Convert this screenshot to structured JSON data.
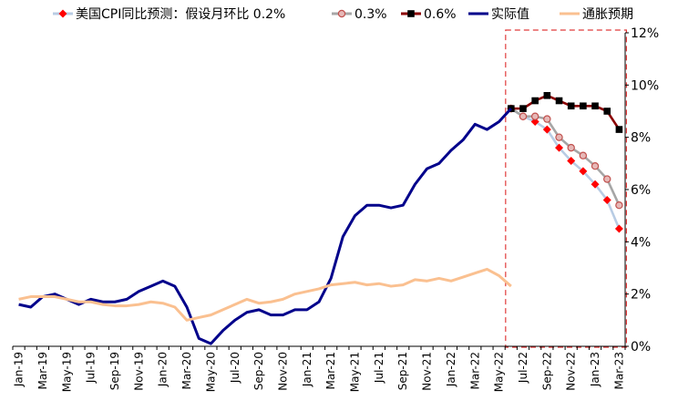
{
  "chart_data": {
    "type": "line",
    "title": "",
    "xlabel": "",
    "ylabel": "",
    "ylim": [
      0,
      12
    ],
    "yticks": [
      "0%",
      "2%",
      "4%",
      "6%",
      "8%",
      "10%",
      "12%"
    ],
    "y_axis_side": "right",
    "x_tick_labels": [
      "Jan-19",
      "Mar-19",
      "May-19",
      "Jul-19",
      "Sep-19",
      "Nov-19",
      "Jan-20",
      "Mar-20",
      "May-20",
      "Jul-20",
      "Sep-20",
      "Nov-20",
      "Jan-21",
      "Mar-21",
      "May-21",
      "Jul-21",
      "Sep-21",
      "Nov-21",
      "Jan-22",
      "Mar-22",
      "May-22",
      "Jul-22",
      "Sep-22",
      "Nov-22",
      "Jan-23",
      "Mar-23"
    ],
    "x_months": [
      "Jan-19",
      "Feb-19",
      "Mar-19",
      "Apr-19",
      "May-19",
      "Jun-19",
      "Jul-19",
      "Aug-19",
      "Sep-19",
      "Oct-19",
      "Nov-19",
      "Dec-19",
      "Jan-20",
      "Feb-20",
      "Mar-20",
      "Apr-20",
      "May-20",
      "Jun-20",
      "Jul-20",
      "Aug-20",
      "Sep-20",
      "Oct-20",
      "Nov-20",
      "Dec-20",
      "Jan-21",
      "Feb-21",
      "Mar-21",
      "Apr-21",
      "May-21",
      "Jun-21",
      "Jul-21",
      "Aug-21",
      "Sep-21",
      "Oct-21",
      "Nov-21",
      "Dec-21",
      "Jan-22",
      "Feb-22",
      "Mar-22",
      "Apr-22",
      "May-22",
      "Jun-22",
      "Jul-22",
      "Aug-22",
      "Sep-22",
      "Oct-22",
      "Nov-22",
      "Dec-22",
      "Jan-23",
      "Feb-23",
      "Mar-23"
    ],
    "highlight_region": {
      "from": "Jun-22",
      "to": "Mar-23",
      "style": "dashed",
      "color": "#e03a3a"
    },
    "legend": {
      "placement": "top"
    },
    "series": [
      {
        "name": "美国CPI同比预测：假设月环比 0.2%",
        "color": "#b8cce4",
        "marker": "diamond",
        "marker_color": "#ff0000",
        "x": [
          "Jun-22",
          "Jul-22",
          "Aug-22",
          "Sep-22",
          "Oct-22",
          "Nov-22",
          "Dec-22",
          "Jan-23",
          "Feb-23",
          "Mar-23"
        ],
        "values": [
          9.1,
          8.8,
          8.6,
          8.3,
          7.6,
          7.1,
          6.7,
          6.2,
          5.6,
          4.5
        ]
      },
      {
        "name": "0.3%",
        "color": "#a6a6a6",
        "marker": "circle",
        "marker_color": "#e6b8b7",
        "marker_edge": "#c0504d",
        "x": [
          "Jun-22",
          "Jul-22",
          "Aug-22",
          "Sep-22",
          "Oct-22",
          "Nov-22",
          "Dec-22",
          "Jan-23",
          "Feb-23",
          "Mar-23"
        ],
        "values": [
          9.1,
          8.8,
          8.8,
          8.7,
          8.0,
          7.6,
          7.3,
          6.9,
          6.4,
          5.4
        ]
      },
      {
        "name": "0.6%",
        "color": "#8b0000",
        "marker": "square",
        "marker_color": "#000000",
        "x": [
          "Jun-22",
          "Jul-22",
          "Aug-22",
          "Sep-22",
          "Oct-22",
          "Nov-22",
          "Dec-22",
          "Jan-23",
          "Feb-23",
          "Mar-23"
        ],
        "values": [
          9.1,
          9.1,
          9.4,
          9.6,
          9.4,
          9.2,
          9.2,
          9.2,
          9.0,
          8.3
        ]
      },
      {
        "name": "实际值",
        "color": "#00008b",
        "marker": "none",
        "x": [
          "Jan-19",
          "Feb-19",
          "Mar-19",
          "Apr-19",
          "May-19",
          "Jun-19",
          "Jul-19",
          "Aug-19",
          "Sep-19",
          "Oct-19",
          "Nov-19",
          "Dec-19",
          "Jan-20",
          "Feb-20",
          "Mar-20",
          "Apr-20",
          "May-20",
          "Jun-20",
          "Jul-20",
          "Aug-20",
          "Sep-20",
          "Oct-20",
          "Nov-20",
          "Dec-20",
          "Jan-21",
          "Feb-21",
          "Mar-21",
          "Apr-21",
          "May-21",
          "Jun-21",
          "Jul-21",
          "Aug-21",
          "Sep-21",
          "Oct-21",
          "Nov-21",
          "Dec-21",
          "Jan-22",
          "Feb-22",
          "Mar-22",
          "Apr-22",
          "May-22",
          "Jun-22"
        ],
        "values": [
          1.6,
          1.5,
          1.9,
          2.0,
          1.8,
          1.6,
          1.8,
          1.7,
          1.7,
          1.8,
          2.1,
          2.3,
          2.5,
          2.3,
          1.5,
          0.3,
          0.1,
          0.6,
          1.0,
          1.3,
          1.4,
          1.2,
          1.2,
          1.4,
          1.4,
          1.7,
          2.6,
          4.2,
          5.0,
          5.4,
          5.4,
          5.3,
          5.4,
          6.2,
          6.8,
          7.0,
          7.5,
          7.9,
          8.5,
          8.3,
          8.6,
          9.1
        ]
      },
      {
        "name": "通胀预期",
        "color": "#fac090",
        "marker": "none",
        "x": [
          "Jan-19",
          "Feb-19",
          "Mar-19",
          "Apr-19",
          "May-19",
          "Jun-19",
          "Jul-19",
          "Aug-19",
          "Sep-19",
          "Oct-19",
          "Nov-19",
          "Dec-19",
          "Jan-20",
          "Feb-20",
          "Mar-20",
          "Apr-20",
          "May-20",
          "Jun-20",
          "Jul-20",
          "Aug-20",
          "Sep-20",
          "Oct-20",
          "Nov-20",
          "Dec-20",
          "Jan-21",
          "Feb-21",
          "Mar-21",
          "Apr-21",
          "May-21",
          "Jun-21",
          "Jul-21",
          "Aug-21",
          "Sep-21",
          "Oct-21",
          "Nov-21",
          "Dec-21",
          "Jan-22",
          "Feb-22",
          "Mar-22",
          "Apr-22",
          "May-22",
          "Jun-22"
        ],
        "values": [
          1.8,
          1.9,
          1.9,
          1.9,
          1.8,
          1.7,
          1.7,
          1.6,
          1.55,
          1.55,
          1.6,
          1.7,
          1.65,
          1.5,
          1.0,
          1.1,
          1.2,
          1.4,
          1.6,
          1.8,
          1.65,
          1.7,
          1.8,
          2.0,
          2.1,
          2.2,
          2.35,
          2.4,
          2.45,
          2.35,
          2.4,
          2.3,
          2.35,
          2.55,
          2.5,
          2.6,
          2.5,
          2.65,
          2.8,
          2.95,
          2.7,
          2.3
        ]
      }
    ]
  }
}
